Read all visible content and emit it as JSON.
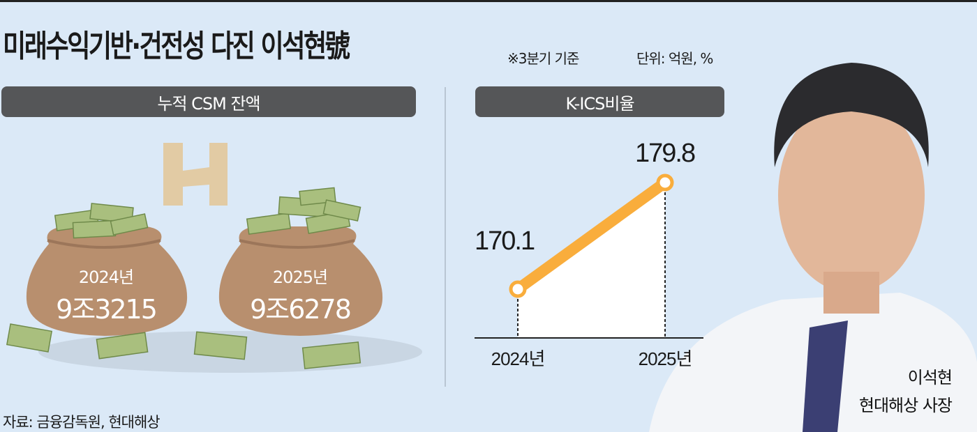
{
  "header": {
    "title": "미래수익기반·건전성 다진 이석현號",
    "basis_note": "※3분기 기준",
    "unit_note": "단위: 억원, %"
  },
  "panels": {
    "csm": {
      "label": "누적 CSM 잔액",
      "items": [
        {
          "year": "2024년",
          "value": "9조3215"
        },
        {
          "year": "2025년",
          "value": "9조6278"
        }
      ]
    },
    "kics": {
      "label": "K-ICS비율"
    }
  },
  "chart_data": {
    "type": "line",
    "title": "K-ICS비율",
    "categories": [
      "2024년",
      "2025년"
    ],
    "values": [
      170.1,
      179.8
    ],
    "value_labels": [
      "170.1",
      "179.8"
    ],
    "line_color": "#f9ad3c",
    "fill_color": "#ffffff",
    "grid": false
  },
  "person": {
    "name": "이석현",
    "title": "현대해상 사장"
  },
  "source": "자료: 금융감독원, 현대해상",
  "colors": {
    "background": "#dbe9f7",
    "pill": "#555658",
    "bag": "#b88f6e",
    "accent": "#f9ad3c"
  }
}
